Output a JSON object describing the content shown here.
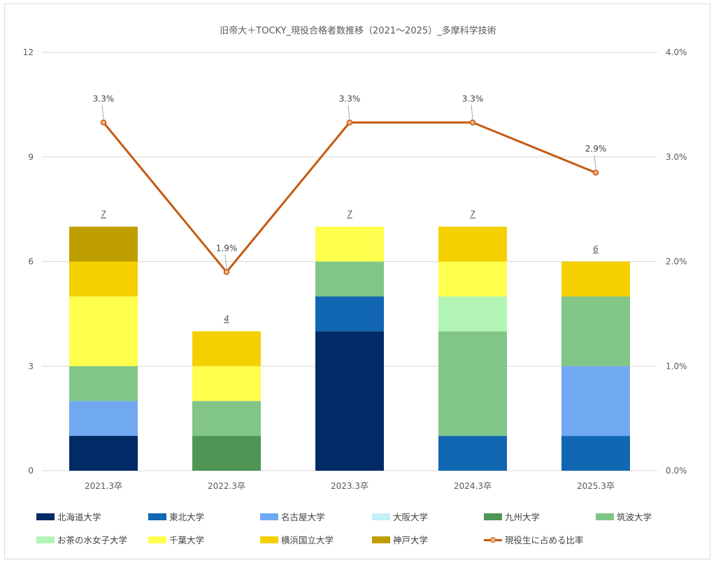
{
  "chart_data": {
    "type": "bar",
    "stacked": true,
    "title": "旧帝大＋TOCKY_現役合格者数推移（2021～2025）_多摩科学技術",
    "categories": [
      "2021.3卒",
      "2022.3卒",
      "2023.3卒",
      "2024.3卒",
      "2025.3卒"
    ],
    "ylim": [
      0,
      12
    ],
    "yticks": [
      "0",
      "3",
      "6",
      "9",
      "12"
    ],
    "y2lim": [
      0,
      4
    ],
    "y2ticks": [
      "0.0%",
      "1.0%",
      "2.0%",
      "3.0%",
      "4.0%"
    ],
    "grid": true,
    "legend_position": "bottom",
    "totals": [
      "7",
      "4",
      "7",
      "7",
      "6"
    ],
    "series": [
      {
        "name": "北海道大学",
        "color": "#002b66",
        "values": [
          1,
          0,
          4,
          0,
          0
        ]
      },
      {
        "name": "東北大学",
        "color": "#1167b1",
        "values": [
          0,
          0,
          1,
          1,
          1
        ]
      },
      {
        "name": "名古屋大学",
        "color": "#70a9f2",
        "values": [
          1,
          0,
          0,
          0,
          2
        ]
      },
      {
        "name": "大阪大学",
        "color": "#c1f0f7",
        "values": [
          0,
          0,
          0,
          0,
          0
        ]
      },
      {
        "name": "九州大学",
        "color": "#4e9556",
        "values": [
          0,
          1,
          0,
          0,
          0
        ]
      },
      {
        "name": "筑波大学",
        "color": "#82c687",
        "values": [
          1,
          1,
          1,
          3,
          2
        ]
      },
      {
        "name": "お茶の水女子大学",
        "color": "#b3f5b5",
        "values": [
          0,
          0,
          0,
          1,
          0
        ]
      },
      {
        "name": "千葉大学",
        "color": "#ffff4d",
        "values": [
          2,
          1,
          1,
          1,
          0
        ]
      },
      {
        "name": "横浜国立大学",
        "color": "#f4d000",
        "values": [
          1,
          1,
          0,
          1,
          1
        ]
      },
      {
        "name": "神戸大学",
        "color": "#bf9f00",
        "values": [
          1,
          0,
          0,
          0,
          0
        ]
      }
    ],
    "line": {
      "name": "現役生に占める比率",
      "color": "#c55a11",
      "marker_fill": "#f4b183",
      "values": [
        3.33,
        1.9,
        3.33,
        3.33,
        2.85
      ],
      "labels": [
        "3.3%",
        "1.9%",
        "3.3%",
        "3.3%",
        "2.9%"
      ]
    }
  }
}
